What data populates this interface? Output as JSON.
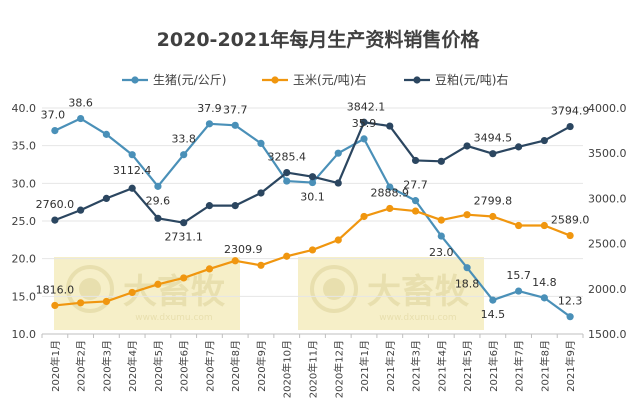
{
  "chart_data": {
    "type": "line",
    "title": "2020-2021年每月生产资料销售价格",
    "categories": [
      "2020年1月",
      "2020年2月",
      "2020年3月",
      "2020年4月",
      "2020年5月",
      "2020年6月",
      "2020年7月",
      "2020年8月",
      "2020年9月",
      "2020年10月",
      "2020年11月",
      "2020年12月",
      "2021年1月",
      "2021年2月",
      "2021年3月",
      "2021年4月",
      "2021年5月",
      "2021年6月",
      "2021年7月",
      "2021年8月",
      "2021年9月"
    ],
    "y_left": {
      "range": [
        10,
        40
      ],
      "ticks": [
        "10.0",
        "15.0",
        "20.0",
        "25.0",
        "30.0",
        "35.0",
        "40.0"
      ]
    },
    "y_right": {
      "range": [
        1500,
        4000
      ],
      "ticks": [
        "1500.0",
        "2000.0",
        "2500.0",
        "3000.0",
        "3500.0",
        "4000.0"
      ]
    },
    "grid": true,
    "legend_position": "top",
    "series": [
      {
        "name": "生猪(元/公斤)",
        "axis": "left",
        "color": "#4a90b8",
        "values": [
          37.0,
          38.6,
          36.5,
          33.8,
          29.6,
          33.8,
          37.9,
          37.7,
          35.3,
          30.3,
          30.1,
          34.0,
          35.9,
          29.5,
          27.7,
          23.0,
          18.8,
          14.5,
          15.7,
          14.8,
          12.3
        ],
        "labels": [
          "37.0",
          "38.6",
          "",
          "",
          "29.6",
          "33.8",
          "37.9",
          "37.7",
          "",
          "",
          "30.1",
          "",
          "35.9",
          "",
          "27.7",
          "23.0",
          "18.8",
          "14.5",
          "15.7",
          "14.8",
          "12.3"
        ]
      },
      {
        "name": "玉米(元/吨)右",
        "axis": "right",
        "color": "#f0960f",
        "values": [
          1816.0,
          1845,
          1860,
          1960,
          2050,
          2120,
          2220,
          2309.9,
          2260,
          2360,
          2430,
          2540,
          2800,
          2888.9,
          2860,
          2760,
          2820,
          2799.8,
          2700,
          2700,
          2589.0
        ],
        "labels": [
          "1816.0",
          "",
          "",
          "",
          "",
          "",
          "",
          "2309.9",
          "",
          "",
          "",
          "",
          "",
          "2888.9",
          "",
          "",
          "",
          "2799.8",
          "",
          "",
          "2589.0"
        ]
      },
      {
        "name": "豆粕(元/吨)右",
        "axis": "right",
        "color": "#2b4660",
        "values": [
          2760.0,
          2870,
          3000,
          3112.4,
          2780,
          2731.1,
          2920,
          2920,
          3060,
          3285.4,
          3240,
          3170,
          3842.1,
          3800,
          3420,
          3410,
          3580,
          3494.5,
          3570,
          3640,
          3794.9
        ],
        "labels": [
          "2760.0",
          "",
          "",
          "3112.4",
          "",
          "2731.1",
          "",
          "",
          "",
          "3285.4",
          "",
          "",
          "3842.1",
          "",
          "",
          "",
          "",
          "3494.5",
          "",
          "",
          "3794.9"
        ]
      }
    ]
  },
  "watermarks": [
    {
      "brand": "大畜牧",
      "url": "www.dxumu.com"
    },
    {
      "brand": "大畜牧",
      "url": "www.dxumu.com"
    }
  ],
  "colors": {
    "axis": "#bfbfbf",
    "grid": "#e6e6e6",
    "text": "#404040",
    "watermark_bg": "#f6efc8",
    "watermark_text": "#e8dfae"
  }
}
